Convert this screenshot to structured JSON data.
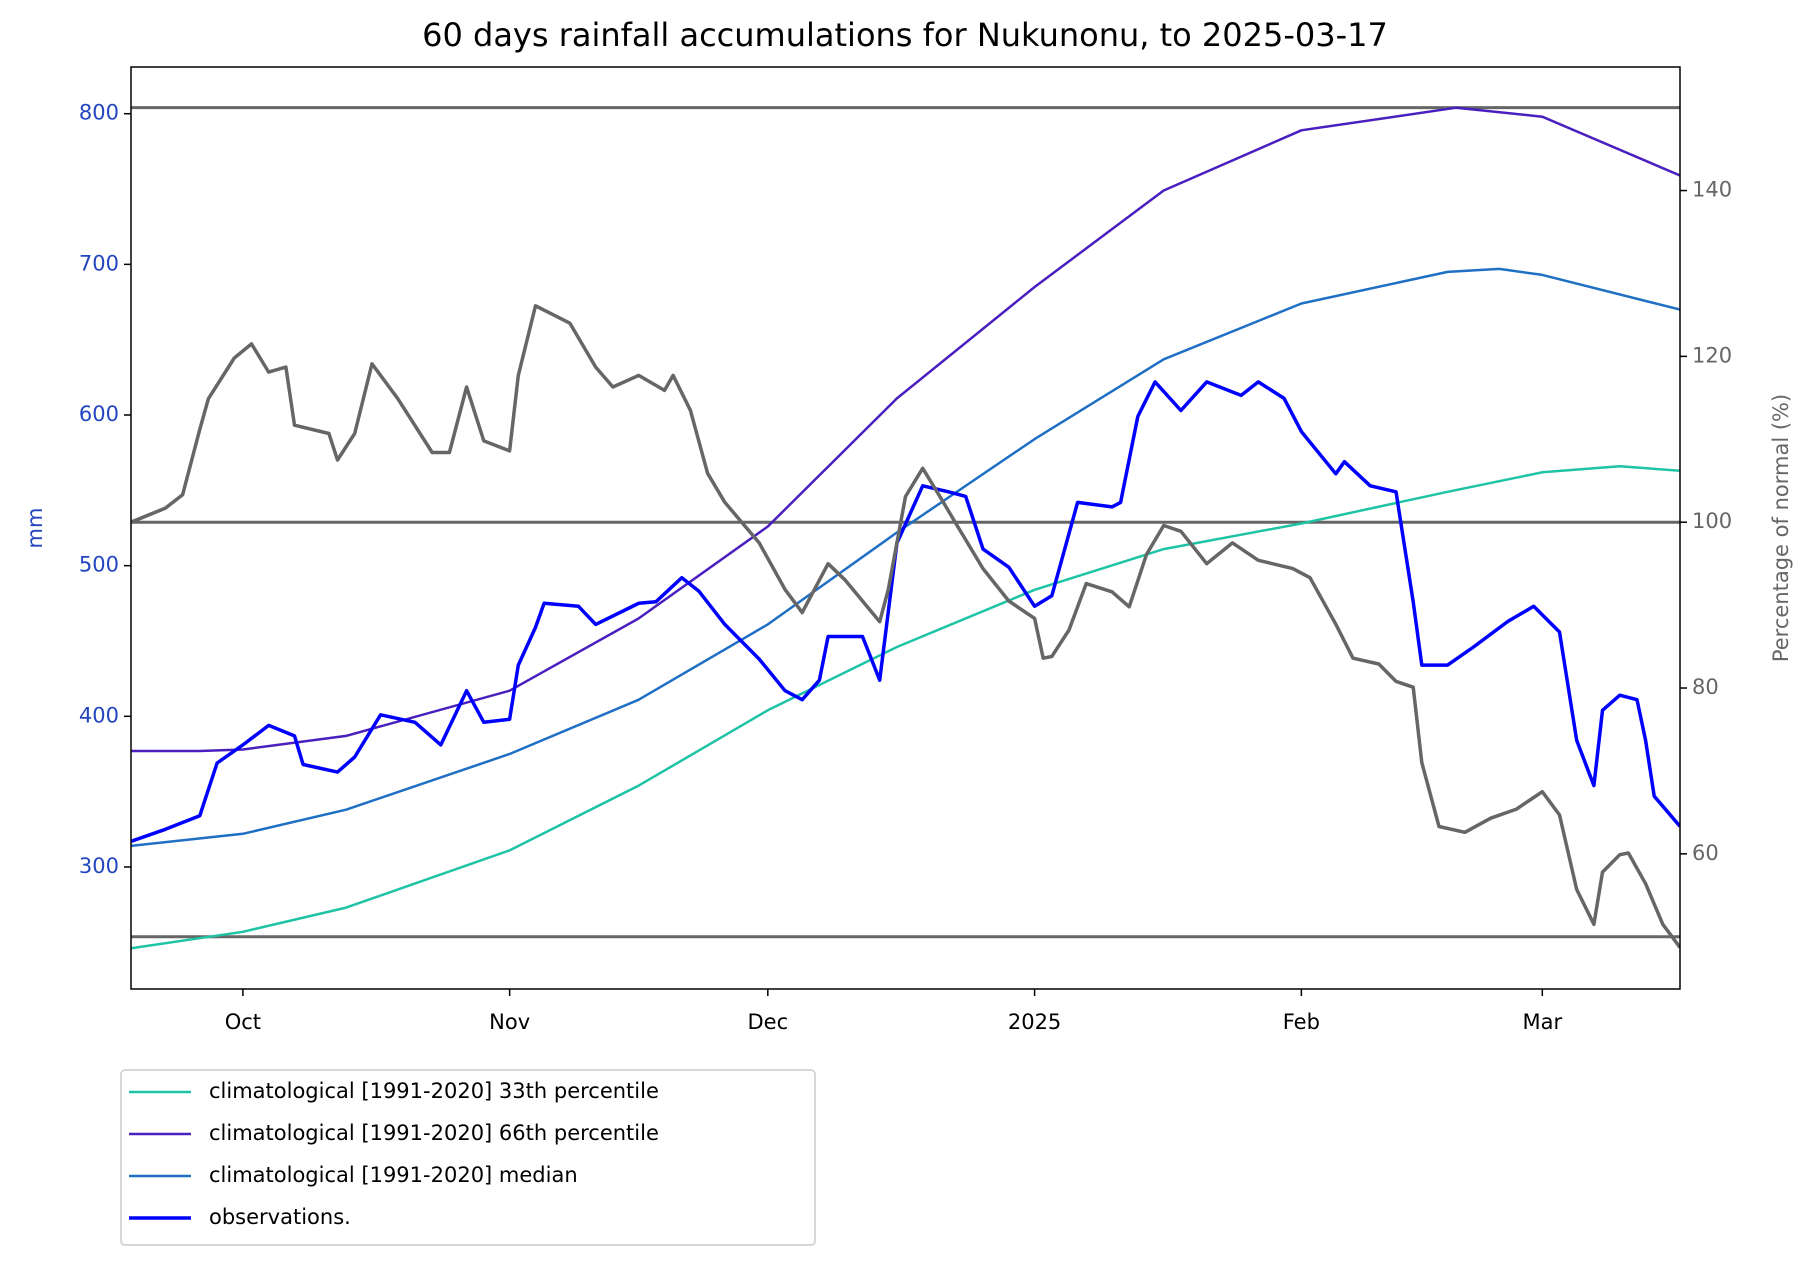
{
  "chart_data": {
    "type": "line",
    "title": "60 days rainfall accumulations for Nukunonu, to 2025-03-17",
    "ylabel": "mm",
    "y2label": "Percentage of normal (%)",
    "xlim": [
      "2024-09-18",
      "2025-03-17"
    ],
    "xticks": [
      {
        "value": "2024-10-01",
        "label": "Oct"
      },
      {
        "value": "2024-11-01",
        "label": "Nov"
      },
      {
        "value": "2024-12-01",
        "label": "Dec"
      },
      {
        "value": "2025-01-01",
        "label": "2025"
      },
      {
        "value": "2025-02-01",
        "label": "Feb"
      },
      {
        "value": "2025-03-01",
        "label": "Mar"
      }
    ],
    "ylim": [
      219,
      831
    ],
    "yticks": [
      300,
      400,
      500,
      600,
      700,
      800
    ],
    "y2lim": [
      43.7,
      154.9
    ],
    "y2ticks": [
      60,
      80,
      100,
      120,
      140
    ],
    "y2_reference_lines": [
      50,
      100,
      150
    ],
    "reference_color": "#666666",
    "ytick_color": "#2346c0",
    "y2tick_color": "#666666",
    "legend": "below left",
    "series": [
      {
        "name": "climatological [1991-2020] 33th percentile",
        "color": "#1fc3a6",
        "width": 2.5,
        "x": [
          "2024-09-18",
          "2024-10-01",
          "2024-10-13",
          "2024-11-01",
          "2024-11-16",
          "2024-12-01",
          "2024-12-16",
          "2025-01-01",
          "2025-01-16",
          "2025-02-01",
          "2025-02-18",
          "2025-03-01",
          "2025-03-10",
          "2025-03-17"
        ],
        "values": [
          246,
          257,
          273,
          311,
          354,
          404,
          446,
          484,
          511,
          528,
          549,
          562,
          566,
          563
        ]
      },
      {
        "name": "climatological [1991-2020] 66th percentile",
        "color": "#4a1fbf",
        "width": 2.5,
        "x": [
          "2024-09-18",
          "2024-09-26",
          "2024-10-01",
          "2024-10-13",
          "2024-11-01",
          "2024-11-16",
          "2024-12-01",
          "2024-12-16",
          "2025-01-01",
          "2025-01-16",
          "2025-02-01",
          "2025-02-19",
          "2025-03-01",
          "2025-03-17"
        ],
        "values": [
          377,
          377,
          378,
          387,
          417,
          465,
          526,
          611,
          685,
          749,
          789,
          804,
          798,
          759
        ]
      },
      {
        "name": "climatological [1991-2020] median",
        "color": "#1f6fc4",
        "width": 2.5,
        "x": [
          "2024-09-18",
          "2024-10-01",
          "2024-10-13",
          "2024-11-01",
          "2024-11-16",
          "2024-12-01",
          "2024-12-16",
          "2025-01-01",
          "2025-01-16",
          "2025-02-01",
          "2025-02-18",
          "2025-02-24",
          "2025-03-01",
          "2025-03-17"
        ],
        "values": [
          314,
          322,
          338,
          375,
          411,
          461,
          522,
          584,
          637,
          674,
          695,
          697,
          693,
          670
        ]
      },
      {
        "name": "observations.",
        "color": "#0000ff",
        "width": 3.5,
        "x": [
          "2024-09-18",
          "2024-09-22",
          "2024-09-26",
          "2024-09-28",
          "2024-10-01",
          "2024-10-04",
          "2024-10-07",
          "2024-10-08",
          "2024-10-12",
          "2024-10-14",
          "2024-10-17",
          "2024-10-21",
          "2024-10-24",
          "2024-10-27",
          "2024-10-29",
          "2024-11-01",
          "2024-11-02",
          "2024-11-04",
          "2024-11-05",
          "2024-11-09",
          "2024-11-11",
          "2024-11-16",
          "2024-11-18",
          "2024-11-21",
          "2024-11-23",
          "2024-11-26",
          "2024-11-30",
          "2024-12-03",
          "2024-12-05",
          "2024-12-07",
          "2024-12-08",
          "2024-12-12",
          "2024-12-14",
          "2024-12-16",
          "2024-12-19",
          "2024-12-22",
          "2024-12-24",
          "2024-12-26",
          "2024-12-29",
          "2025-01-01",
          "2025-01-03",
          "2025-01-06",
          "2025-01-10",
          "2025-01-11",
          "2025-01-13",
          "2025-01-15",
          "2025-01-18",
          "2025-01-21",
          "2025-01-25",
          "2025-01-27",
          "2025-01-30",
          "2025-02-01",
          "2025-02-05",
          "2025-02-06",
          "2025-02-09",
          "2025-02-12",
          "2025-02-14",
          "2025-02-15",
          "2025-02-18",
          "2025-02-21",
          "2025-02-25",
          "2025-02-28",
          "2025-03-03",
          "2025-03-05",
          "2025-03-07",
          "2025-03-08",
          "2025-03-10",
          "2025-03-12",
          "2025-03-13",
          "2025-03-14",
          "2025-03-17"
        ],
        "values": [
          317,
          325,
          334,
          369,
          381,
          394,
          387,
          368,
          363,
          373,
          401,
          396,
          381,
          417,
          396,
          398,
          434,
          459,
          475,
          473,
          461,
          475,
          476,
          492,
          483,
          461,
          438,
          417,
          411,
          424,
          453,
          453,
          424,
          515,
          553,
          549,
          546,
          511,
          499,
          473,
          480,
          542,
          539,
          542,
          599,
          622,
          603,
          622,
          613,
          622,
          611,
          589,
          561,
          569,
          553,
          549,
          476,
          434,
          434,
          446,
          463,
          473,
          456,
          384,
          354,
          404,
          414,
          411,
          384,
          347,
          327
        ]
      },
      {
        "color": "#666666",
        "width": 3.5,
        "axis": "y2",
        "x": [
          "2024-09-18",
          "2024-09-22",
          "2024-09-24",
          "2024-09-26",
          "2024-09-27",
          "2024-09-30",
          "2024-10-02",
          "2024-10-04",
          "2024-10-06",
          "2024-10-07",
          "2024-10-11",
          "2024-10-12",
          "2024-10-14",
          "2024-10-16",
          "2024-10-19",
          "2024-10-23",
          "2024-10-25",
          "2024-10-27",
          "2024-10-29",
          "2024-11-01",
          "2024-11-02",
          "2024-11-04",
          "2024-11-08",
          "2024-11-11",
          "2024-11-13",
          "2024-11-16",
          "2024-11-19",
          "2024-11-20",
          "2024-11-22",
          "2024-11-24",
          "2024-11-26",
          "2024-11-30",
          "2024-12-03",
          "2024-12-05",
          "2024-12-08",
          "2024-12-10",
          "2024-12-14",
          "2024-12-15",
          "2024-12-17",
          "2024-12-19",
          "2024-12-21",
          "2024-12-23",
          "2024-12-26",
          "2024-12-29",
          "2025-01-01",
          "2025-01-02",
          "2025-01-03",
          "2025-01-05",
          "2025-01-07",
          "2025-01-10",
          "2025-01-12",
          "2025-01-14",
          "2025-01-16",
          "2025-01-18",
          "2025-01-21",
          "2025-01-24",
          "2025-01-27",
          "2025-01-31",
          "2025-02-02",
          "2025-02-05",
          "2025-02-07",
          "2025-02-10",
          "2025-02-12",
          "2025-02-14",
          "2025-02-15",
          "2025-02-17",
          "2025-02-20",
          "2025-02-23",
          "2025-02-26",
          "2025-02-28",
          "2025-03-01",
          "2025-03-03",
          "2025-03-05",
          "2025-03-07",
          "2025-03-08",
          "2025-03-10",
          "2025-03-11",
          "2025-03-13",
          "2025-03-15",
          "2025-03-17"
        ],
        "values": [
          100,
          101.7,
          103.3,
          111.2,
          114.9,
          119.8,
          121.5,
          118.1,
          118.7,
          111.7,
          110.7,
          107.5,
          110.7,
          119.1,
          114.9,
          108.4,
          108.4,
          116.3,
          109.8,
          108.6,
          117.7,
          126.1,
          124,
          118.7,
          116.3,
          117.7,
          115.9,
          117.7,
          113.5,
          105.9,
          102.4,
          97.5,
          91.9,
          89.1,
          95,
          93,
          88,
          91.9,
          103.1,
          106.5,
          103.1,
          99.6,
          94.4,
          90.5,
          88.4,
          83.6,
          83.8,
          87,
          92.6,
          91.6,
          89.8,
          96.1,
          99.6,
          98.9,
          95,
          97.5,
          95.4,
          94.4,
          93.3,
          87.7,
          83.6,
          82.9,
          80.8,
          80.1,
          71,
          63.3,
          62.6,
          64.3,
          65.4,
          66.8,
          67.5,
          64.7,
          55.7,
          51.5,
          57.8,
          59.9,
          60.1,
          56.4,
          51.5,
          48.7
        ]
      }
    ]
  }
}
